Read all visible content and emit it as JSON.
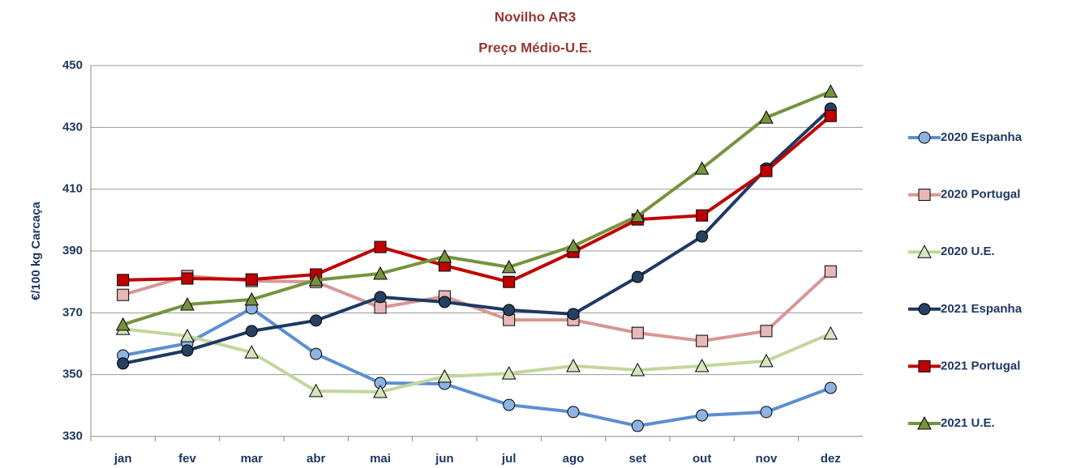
{
  "chart_data": {
    "type": "line",
    "title": "Novilho AR3",
    "subtitle": "Preço Médio-U.E.",
    "y_label": "€/100 kg  Carcaça",
    "categories": [
      "jan",
      "fev",
      "mar",
      "abr",
      "mai",
      "jun",
      "jul",
      "ago",
      "set",
      "out",
      "nov",
      "dez"
    ],
    "ylim": [
      330,
      450
    ],
    "yticks": [
      330,
      350,
      370,
      390,
      410,
      430,
      450
    ],
    "grid": true,
    "legend": "right",
    "series": [
      {
        "name": "2020 Espanha",
        "color": "#5b8fd4",
        "marker_color": "#8db3e2",
        "marker": "circle",
        "values": [
          356.2,
          360.1,
          371.4,
          356.7,
          347.3,
          347.0,
          340.2,
          337.9,
          333.4,
          336.8,
          337.9,
          345.7
        ]
      },
      {
        "name": "2020 Portugal",
        "color": "#d99694",
        "marker_color": "#e6b9b8",
        "marker": "square",
        "values": [
          375.8,
          381.9,
          380.3,
          380.0,
          371.7,
          375.3,
          367.7,
          367.7,
          363.5,
          360.9,
          364.1,
          383.4
        ]
      },
      {
        "name": "2020 U.E.",
        "color": "#c3d69b",
        "marker_color": "#d7e4bd",
        "marker": "triangle",
        "values": [
          364.8,
          362.5,
          357.2,
          344.7,
          344.4,
          349.4,
          350.4,
          352.8,
          351.5,
          352.8,
          354.4,
          363.3
        ]
      },
      {
        "name": "2021 Espanha",
        "color": "#1f3864",
        "marker_color": "#254061",
        "marker": "circle",
        "values": [
          353.6,
          357.8,
          364.1,
          367.5,
          375.1,
          373.5,
          370.9,
          369.6,
          381.6,
          394.7,
          416.7,
          436.1
        ]
      },
      {
        "name": "2021 Portugal",
        "color": "#c00000",
        "marker_color": "#c00000",
        "marker": "square",
        "values": [
          380.6,
          381.1,
          380.8,
          382.4,
          391.3,
          385.3,
          380.0,
          389.7,
          400.2,
          401.5,
          415.9,
          433.7
        ]
      },
      {
        "name": "2021 U.E.",
        "color": "#77933c",
        "marker_color": "#77933c",
        "marker": "triangle",
        "values": [
          366.2,
          372.7,
          374.3,
          380.6,
          382.7,
          388.2,
          384.8,
          391.6,
          401.3,
          416.7,
          433.2,
          441.6
        ]
      }
    ]
  }
}
